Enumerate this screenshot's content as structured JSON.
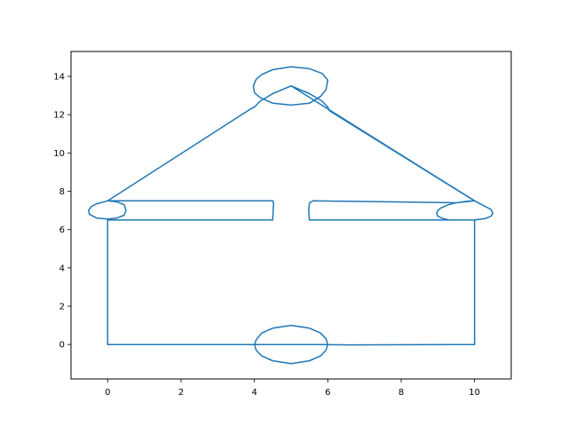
{
  "chart_data": {
    "type": "line",
    "title": "",
    "xlabel": "",
    "ylabel": "",
    "xlim": [
      -1.0,
      11.0
    ],
    "ylim": [
      -1.8,
      15.3
    ],
    "xticks": [
      0,
      2,
      4,
      6,
      8,
      10
    ],
    "yticks": [
      0,
      2,
      4,
      6,
      8,
      10,
      12,
      14
    ],
    "grid": false,
    "line_color": "#1f77b4",
    "series": [
      {
        "values": [
          [
            0.0,
            6.5
          ],
          [
            0.0,
            0.0
          ],
          [
            4.0,
            0.0
          ],
          [
            4.05,
            0.25
          ],
          [
            4.2,
            0.6
          ],
          [
            4.5,
            0.85
          ],
          [
            5.0,
            1.0
          ],
          [
            5.5,
            0.85
          ],
          [
            5.8,
            0.6
          ],
          [
            5.95,
            0.3
          ],
          [
            6.0,
            0.0
          ],
          [
            5.95,
            -0.3
          ],
          [
            5.8,
            -0.6
          ],
          [
            5.5,
            -0.85
          ],
          [
            5.0,
            -1.0
          ],
          [
            4.5,
            -0.85
          ],
          [
            4.2,
            -0.6
          ],
          [
            4.05,
            -0.3
          ],
          [
            4.0,
            0.0
          ],
          [
            6.0,
            0.0
          ],
          [
            6.5,
            -0.02
          ],
          [
            10.0,
            0.0
          ],
          [
            10.0,
            6.5
          ],
          [
            9.5,
            6.5
          ],
          [
            9.3,
            6.5
          ],
          [
            9.1,
            6.6
          ],
          [
            9.0,
            6.7
          ],
          [
            8.97,
            6.85
          ],
          [
            9.0,
            7.0
          ],
          [
            9.1,
            7.15
          ],
          [
            9.3,
            7.3
          ],
          [
            9.5,
            7.4
          ],
          [
            5.6,
            7.5
          ],
          [
            5.5,
            7.4
          ],
          [
            5.48,
            7.0
          ],
          [
            5.5,
            6.5
          ],
          [
            10.0,
            6.5
          ],
          [
            10.3,
            6.58
          ],
          [
            10.45,
            6.7
          ],
          [
            10.5,
            6.85
          ],
          [
            10.45,
            7.05
          ],
          [
            10.3,
            7.2
          ],
          [
            10.0,
            7.5
          ],
          [
            9.8,
            7.48
          ],
          [
            9.5,
            7.4
          ],
          [
            10.0,
            7.5
          ],
          [
            5.0,
            13.5
          ],
          [
            4.5,
            13.1
          ],
          [
            4.15,
            12.7
          ],
          [
            4.0,
            12.4
          ],
          [
            3.9,
            12.3
          ],
          [
            0.0,
            7.5
          ],
          [
            0.25,
            7.45
          ],
          [
            0.45,
            7.3
          ],
          [
            0.5,
            7.0
          ],
          [
            0.45,
            6.75
          ],
          [
            0.25,
            6.6
          ],
          [
            0.0,
            6.55
          ],
          [
            -0.3,
            6.6
          ],
          [
            -0.5,
            6.8
          ],
          [
            -0.52,
            7.0
          ],
          [
            -0.45,
            7.2
          ],
          [
            -0.3,
            7.35
          ],
          [
            0.0,
            7.5
          ],
          [
            4.5,
            7.5
          ],
          [
            4.52,
            7.4
          ],
          [
            4.5,
            6.5
          ],
          [
            0.0,
            6.5
          ]
        ]
      },
      {
        "values": [
          [
            5.0,
            13.5
          ],
          [
            5.5,
            13.1
          ],
          [
            5.85,
            12.7
          ],
          [
            6.0,
            12.4
          ],
          [
            6.05,
            12.2
          ],
          [
            10.0,
            7.5
          ]
        ]
      },
      {
        "values": [
          [
            5.0,
            14.5
          ],
          [
            5.5,
            14.4
          ],
          [
            5.85,
            14.15
          ],
          [
            6.0,
            13.8
          ],
          [
            5.95,
            13.3
          ],
          [
            5.8,
            12.95
          ],
          [
            5.5,
            12.6
          ],
          [
            5.0,
            12.5
          ],
          [
            4.5,
            12.6
          ],
          [
            4.15,
            12.9
          ],
          [
            4.0,
            13.15
          ],
          [
            3.97,
            13.5
          ],
          [
            4.05,
            13.85
          ],
          [
            4.2,
            14.1
          ],
          [
            4.5,
            14.35
          ],
          [
            5.0,
            14.5
          ]
        ]
      }
    ]
  }
}
